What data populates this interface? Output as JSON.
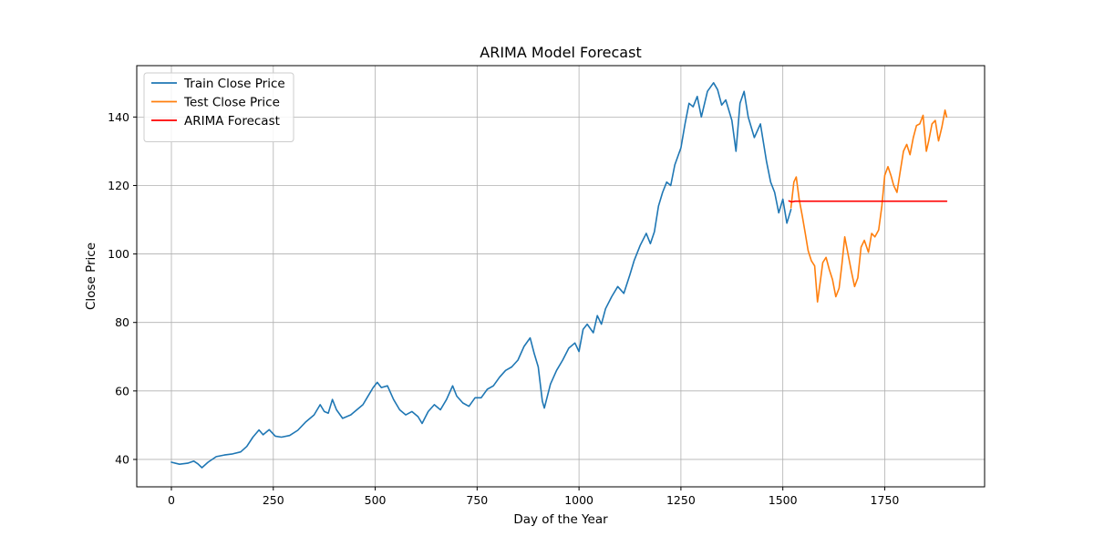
{
  "chart_data": {
    "type": "line",
    "title": "ARIMA Model Forecast",
    "xlabel": "Day of the Year",
    "ylabel": "Close Price",
    "xlim": [
      -85,
      1995
    ],
    "ylim": [
      32,
      155
    ],
    "xticks": [
      0,
      250,
      500,
      750,
      1000,
      1250,
      1500,
      1750
    ],
    "yticks": [
      40,
      60,
      80,
      100,
      120,
      140
    ],
    "grid": true,
    "legend_position": "top-left",
    "series": [
      {
        "name": "Train Close Price",
        "color": "#1f77b4",
        "points": [
          [
            0,
            39.2
          ],
          [
            20,
            38.6
          ],
          [
            40,
            38.9
          ],
          [
            55,
            39.5
          ],
          [
            65,
            38.7
          ],
          [
            75,
            37.6
          ],
          [
            90,
            39.2
          ],
          [
            110,
            40.8
          ],
          [
            130,
            41.3
          ],
          [
            150,
            41.6
          ],
          [
            170,
            42.2
          ],
          [
            185,
            43.8
          ],
          [
            200,
            46.5
          ],
          [
            215,
            48.6
          ],
          [
            225,
            47.2
          ],
          [
            240,
            48.7
          ],
          [
            255,
            46.8
          ],
          [
            270,
            46.5
          ],
          [
            290,
            47.0
          ],
          [
            310,
            48.5
          ],
          [
            330,
            51.0
          ],
          [
            350,
            53.0
          ],
          [
            365,
            56.0
          ],
          [
            375,
            54.0
          ],
          [
            385,
            53.5
          ],
          [
            395,
            57.5
          ],
          [
            405,
            54.5
          ],
          [
            420,
            52.0
          ],
          [
            440,
            53.0
          ],
          [
            455,
            54.5
          ],
          [
            470,
            56.0
          ],
          [
            480,
            58.0
          ],
          [
            495,
            61.0
          ],
          [
            505,
            62.5
          ],
          [
            515,
            61.0
          ],
          [
            530,
            61.5
          ],
          [
            545,
            57.5
          ],
          [
            560,
            54.5
          ],
          [
            575,
            53.0
          ],
          [
            590,
            54.0
          ],
          [
            605,
            52.5
          ],
          [
            615,
            50.5
          ],
          [
            630,
            54.0
          ],
          [
            645,
            56.0
          ],
          [
            660,
            54.5
          ],
          [
            675,
            57.5
          ],
          [
            690,
            61.5
          ],
          [
            700,
            58.5
          ],
          [
            715,
            56.5
          ],
          [
            730,
            55.5
          ],
          [
            745,
            58.0
          ],
          [
            760,
            58.0
          ],
          [
            775,
            60.5
          ],
          [
            790,
            61.5
          ],
          [
            805,
            64.0
          ],
          [
            820,
            66.0
          ],
          [
            835,
            67.0
          ],
          [
            850,
            69.0
          ],
          [
            865,
            73.0
          ],
          [
            880,
            75.5
          ],
          [
            890,
            71.0
          ],
          [
            900,
            67.0
          ],
          [
            910,
            57.0
          ],
          [
            915,
            55.0
          ],
          [
            930,
            62.0
          ],
          [
            945,
            66.0
          ],
          [
            960,
            69.0
          ],
          [
            975,
            72.5
          ],
          [
            990,
            74.0
          ],
          [
            1000,
            71.5
          ],
          [
            1010,
            78.0
          ],
          [
            1020,
            79.5
          ],
          [
            1035,
            77.0
          ],
          [
            1045,
            82.0
          ],
          [
            1055,
            79.5
          ],
          [
            1065,
            84.0
          ],
          [
            1080,
            87.5
          ],
          [
            1095,
            90.5
          ],
          [
            1110,
            88.5
          ],
          [
            1125,
            94.0
          ],
          [
            1135,
            98.0
          ],
          [
            1150,
            102.5
          ],
          [
            1165,
            106.0
          ],
          [
            1175,
            103.0
          ],
          [
            1185,
            106.5
          ],
          [
            1195,
            114.0
          ],
          [
            1205,
            118.0
          ],
          [
            1215,
            121.0
          ],
          [
            1225,
            120.0
          ],
          [
            1235,
            126.0
          ],
          [
            1250,
            131.0
          ],
          [
            1260,
            138.0
          ],
          [
            1270,
            144.0
          ],
          [
            1280,
            143.0
          ],
          [
            1290,
            146.0
          ],
          [
            1300,
            140.0
          ],
          [
            1315,
            147.5
          ],
          [
            1330,
            150.0
          ],
          [
            1340,
            148.0
          ],
          [
            1350,
            143.5
          ],
          [
            1360,
            145.0
          ],
          [
            1375,
            139.0
          ],
          [
            1385,
            130.0
          ],
          [
            1395,
            144.0
          ],
          [
            1405,
            147.5
          ],
          [
            1415,
            140.0
          ],
          [
            1430,
            134.0
          ],
          [
            1445,
            138.0
          ],
          [
            1460,
            127.0
          ],
          [
            1470,
            121.0
          ],
          [
            1480,
            118.0
          ],
          [
            1490,
            112.0
          ],
          [
            1500,
            116.0
          ],
          [
            1510,
            109.0
          ],
          [
            1520,
            113.0
          ]
        ]
      },
      {
        "name": "Test Close Price",
        "color": "#ff7f0e",
        "points": [
          [
            1520,
            113.5
          ],
          [
            1527,
            121.0
          ],
          [
            1533,
            122.5
          ],
          [
            1540,
            116.0
          ],
          [
            1548,
            111.0
          ],
          [
            1555,
            106.0
          ],
          [
            1562,
            101.0
          ],
          [
            1570,
            98.0
          ],
          [
            1578,
            96.5
          ],
          [
            1585,
            86.0
          ],
          [
            1592,
            92.0
          ],
          [
            1598,
            97.5
          ],
          [
            1606,
            99.0
          ],
          [
            1614,
            95.5
          ],
          [
            1622,
            92.5
          ],
          [
            1630,
            87.5
          ],
          [
            1638,
            90.0
          ],
          [
            1645,
            97.0
          ],
          [
            1652,
            105.0
          ],
          [
            1660,
            100.0
          ],
          [
            1668,
            95.0
          ],
          [
            1676,
            90.5
          ],
          [
            1684,
            93.0
          ],
          [
            1692,
            102.0
          ],
          [
            1700,
            104.0
          ],
          [
            1710,
            100.5
          ],
          [
            1718,
            106.0
          ],
          [
            1726,
            105.0
          ],
          [
            1735,
            107.0
          ],
          [
            1743,
            114.0
          ],
          [
            1750,
            123.0
          ],
          [
            1758,
            125.5
          ],
          [
            1765,
            123.0
          ],
          [
            1772,
            120.0
          ],
          [
            1780,
            118.0
          ],
          [
            1788,
            124.0
          ],
          [
            1796,
            130.0
          ],
          [
            1804,
            132.0
          ],
          [
            1812,
            129.0
          ],
          [
            1820,
            134.0
          ],
          [
            1828,
            137.5
          ],
          [
            1836,
            138.0
          ],
          [
            1844,
            140.5
          ],
          [
            1852,
            130.0
          ],
          [
            1858,
            133.0
          ],
          [
            1866,
            138.0
          ],
          [
            1874,
            139.0
          ],
          [
            1882,
            133.0
          ],
          [
            1890,
            137.0
          ],
          [
            1898,
            142.0
          ],
          [
            1902,
            140.0
          ]
        ]
      },
      {
        "name": "ARIMA Forecast",
        "color": "#ff0000",
        "points": [
          [
            1515,
            115.5
          ],
          [
            1522,
            115.2
          ],
          [
            1530,
            115.4
          ],
          [
            1902,
            115.4
          ]
        ]
      }
    ]
  }
}
